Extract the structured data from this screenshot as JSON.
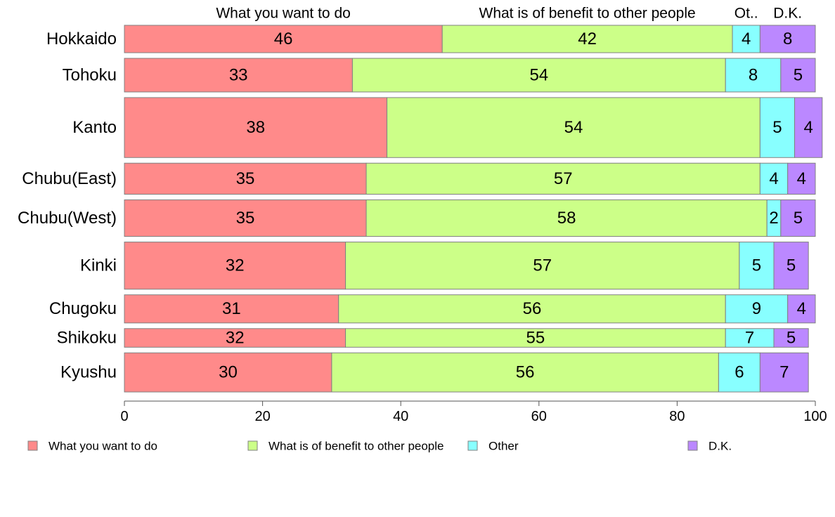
{
  "chart_data": {
    "type": "bar",
    "orientation": "horizontal",
    "stacked": true,
    "categories": [
      "Hokkaido",
      "Tohoku",
      "Kanto",
      "Chubu(East)",
      "Chubu(West)",
      "Kinki",
      "Chugoku",
      "Shikoku",
      "Kyushu"
    ],
    "series": [
      {
        "name": "What you want to do",
        "header": "What you want to do",
        "color": "#ff8a8a",
        "values": [
          46,
          33,
          38,
          35,
          35,
          32,
          31,
          32,
          30
        ]
      },
      {
        "name": "What is of benefit to other people",
        "header": "What is of benefit to other people",
        "color": "#ccff88",
        "values": [
          42,
          54,
          54,
          57,
          58,
          57,
          56,
          55,
          56
        ]
      },
      {
        "name": "Other",
        "header": "Ot..",
        "color": "#88ffff",
        "values": [
          4,
          8,
          5,
          4,
          2,
          5,
          9,
          7,
          6
        ]
      },
      {
        "name": "D.K.",
        "header": "D.K.",
        "color": "#bb88ff",
        "values": [
          8,
          5,
          4,
          4,
          5,
          5,
          4,
          5,
          7
        ]
      }
    ],
    "bar_weights": [
      0.75,
      0.92,
      1.64,
      0.85,
      1.0,
      1.29,
      0.77,
      0.51,
      1.07
    ],
    "xlim": [
      0,
      100
    ],
    "xticks": [
      0,
      20,
      40,
      60,
      80,
      100
    ],
    "grid": false,
    "legend_position": "bottom"
  }
}
